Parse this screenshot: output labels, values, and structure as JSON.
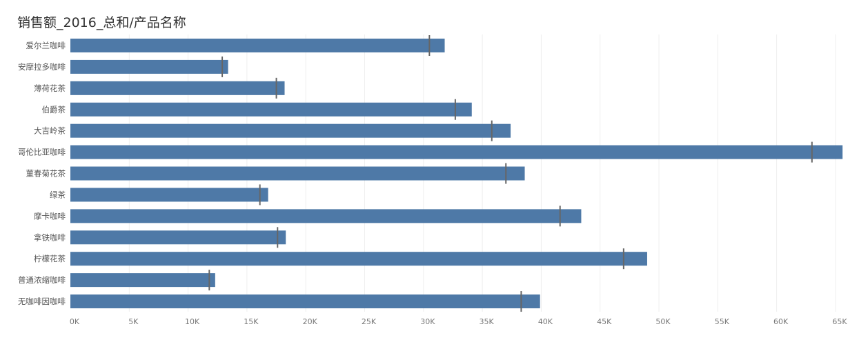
{
  "chart_data": {
    "type": "bar",
    "orientation": "horizontal",
    "title": "销售额_2016_总和/产品名称",
    "xlabel": "",
    "ylabel": "",
    "categories": [
      "爱尔兰咖啡",
      "安摩拉多咖啡",
      "薄荷花茶",
      "伯爵茶",
      "大吉岭茶",
      "哥伦比亚咖啡",
      "菫春菊花茶",
      "绿茶",
      "摩卡咖啡",
      "拿铁咖啡",
      "柠檬花茶",
      "普通浓缩咖啡",
      "无咖啡因咖啡"
    ],
    "series": [
      {
        "values": [
          31800,
          13400,
          18200,
          34100,
          37400,
          65600,
          38600,
          16800,
          43400,
          18300,
          49000,
          12300,
          39900
        ]
      }
    ],
    "reference_lines": [
      30500,
      12900,
      17500,
      32700,
      35800,
      63000,
      37000,
      16100,
      41600,
      17600,
      47000,
      11800,
      38300
    ],
    "xlim": [
      0,
      66000
    ],
    "xticks": [
      0,
      5000,
      10000,
      15000,
      20000,
      25000,
      30000,
      35000,
      40000,
      45000,
      50000,
      55000,
      60000,
      65000
    ],
    "xtick_labels": [
      "0K",
      "5K",
      "10K",
      "15K",
      "20K",
      "25K",
      "30K",
      "35K",
      "40K",
      "45K",
      "50K",
      "55K",
      "60K",
      "65K"
    ],
    "grid": true,
    "legend": "none",
    "colors": {
      "bar": "#4e79a7",
      "reference": "#666666",
      "grid": "#eeeeee"
    }
  }
}
